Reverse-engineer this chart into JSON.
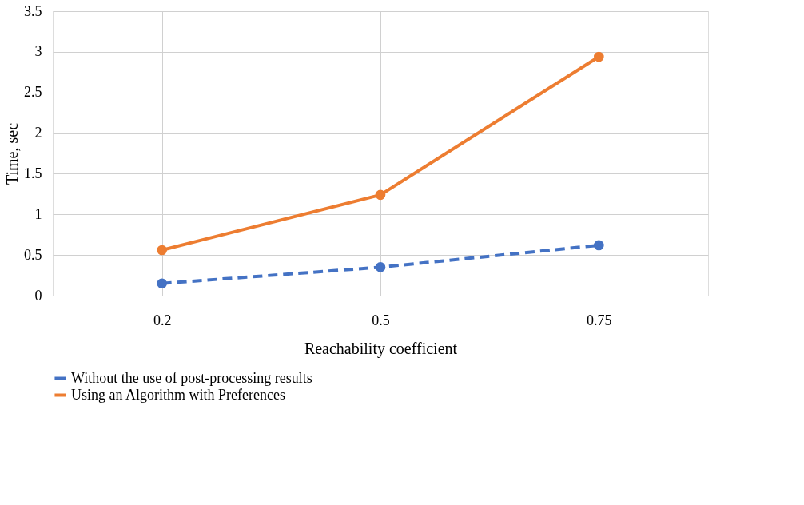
{
  "chart_data": {
    "type": "line",
    "xlabel": "Reachability coefficient",
    "ylabel": "Time, sec",
    "categories": [
      "0.2",
      "0.5",
      "0.75"
    ],
    "series": [
      {
        "name": "Without the use of post-processing results",
        "color": "#4472c4",
        "values": [
          0.15,
          0.35,
          0.62
        ],
        "line_style": "dashed"
      },
      {
        "name": "Using an Algorithm with Preferences",
        "color": "#ed7d31",
        "values": [
          0.56,
          1.24,
          2.94
        ],
        "line_style": "solid"
      }
    ],
    "ylim": [
      0,
      3.5
    ],
    "yticks": [
      0,
      0.5,
      1,
      1.5,
      2,
      2.5,
      3,
      3.5
    ],
    "grid": true,
    "legend": "bottom",
    "marker": "circle"
  }
}
